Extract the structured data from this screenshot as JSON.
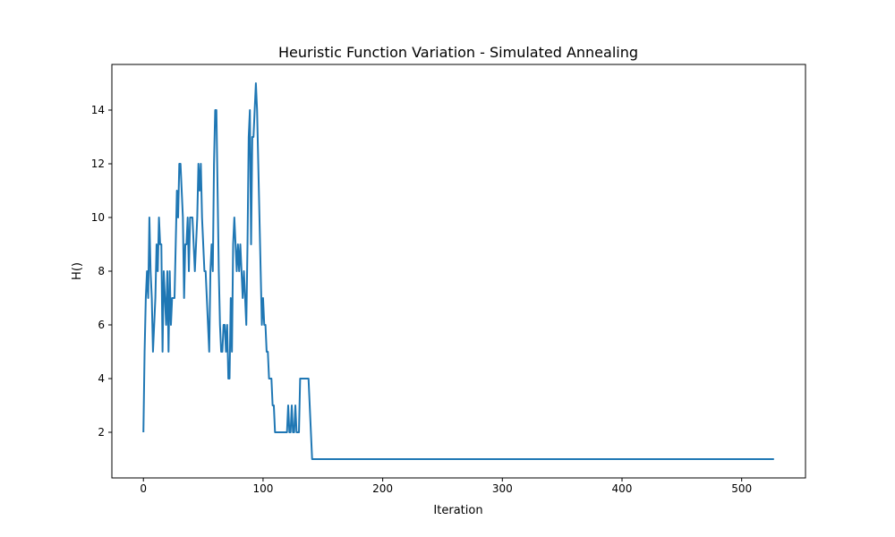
{
  "chart_data": {
    "type": "line",
    "title": "Heuristic Function Variation - Simulated Annealing",
    "xlabel": "Iteration",
    "ylabel": "H()",
    "x": [
      0,
      1,
      2,
      3,
      4,
      5,
      6,
      7,
      8,
      9,
      10,
      11,
      12,
      13,
      14,
      15,
      16,
      17,
      18,
      19,
      20,
      21,
      22,
      23,
      24,
      25,
      26,
      27,
      28,
      29,
      30,
      31,
      32,
      33,
      34,
      35,
      36,
      37,
      38,
      39,
      40,
      41,
      42,
      43,
      44,
      45,
      46,
      47,
      48,
      49,
      50,
      51,
      52,
      53,
      54,
      55,
      56,
      57,
      58,
      59,
      60,
      61,
      62,
      63,
      64,
      65,
      66,
      67,
      68,
      69,
      70,
      71,
      72,
      73,
      74,
      75,
      76,
      77,
      78,
      79,
      80,
      81,
      82,
      83,
      84,
      85,
      86,
      87,
      88,
      89,
      90,
      91,
      92,
      93,
      94,
      95,
      96,
      97,
      98,
      99,
      100,
      101,
      102,
      103,
      104,
      105,
      106,
      107,
      108,
      109,
      110,
      111,
      112,
      113,
      114,
      115,
      116,
      117,
      118,
      119,
      120,
      121,
      122,
      123,
      124,
      125,
      126,
      127,
      128,
      129,
      130,
      131,
      132,
      133,
      134,
      135,
      136,
      137,
      138,
      139,
      140,
      141,
      527
    ],
    "series": [
      {
        "name": "H()",
        "color": "#1f77b4",
        "values": [
          2,
          5,
          7,
          8,
          7,
          10,
          8,
          7,
          5,
          6,
          7,
          9,
          8,
          10,
          9,
          9,
          5,
          8,
          7,
          6,
          8,
          5,
          8,
          6,
          7,
          7,
          7,
          9,
          11,
          10,
          12,
          12,
          11,
          10,
          7,
          9,
          9,
          10,
          8,
          10,
          10,
          10,
          9,
          8,
          9,
          10,
          12,
          11,
          12,
          10,
          9,
          8,
          8,
          7,
          6,
          5,
          8,
          9,
          8,
          12,
          14,
          14,
          11,
          8,
          6,
          5,
          5,
          6,
          6,
          5,
          6,
          4,
          4,
          7,
          5,
          9,
          10,
          9,
          8,
          9,
          8,
          9,
          8,
          7,
          8,
          7,
          6,
          9,
          13,
          14,
          9,
          13,
          13,
          14,
          15,
          14,
          12,
          10,
          8,
          6,
          7,
          6,
          6,
          5,
          5,
          4,
          4,
          4,
          3,
          3,
          2,
          2,
          2,
          2,
          2,
          2,
          2,
          2,
          2,
          2,
          2,
          3,
          2,
          2,
          3,
          2,
          2,
          3,
          2,
          2,
          2,
          4,
          4,
          4,
          4,
          4,
          4,
          4,
          4,
          3,
          2,
          1,
          1
        ]
      }
    ],
    "xlim": [
      -26.35,
      553.35
    ],
    "ylim": [
      0.3,
      15.7
    ],
    "xticks": [
      0,
      100,
      200,
      300,
      400,
      500
    ],
    "yticks": [
      2,
      4,
      6,
      8,
      10,
      12,
      14
    ]
  }
}
